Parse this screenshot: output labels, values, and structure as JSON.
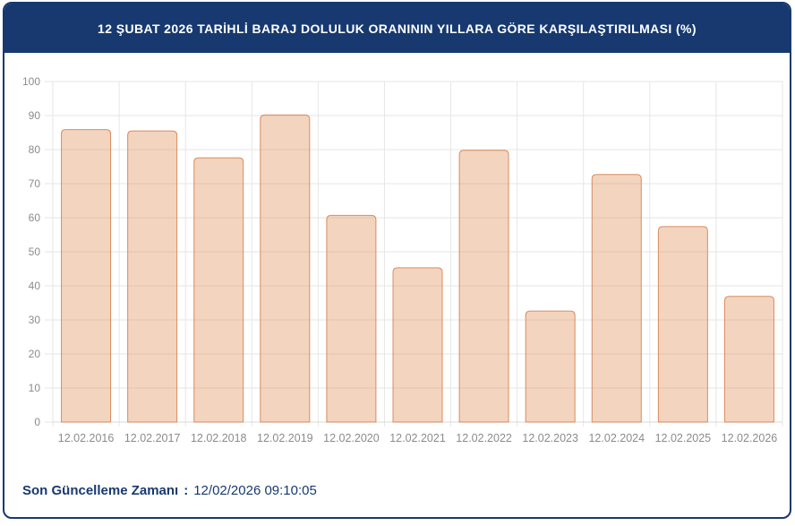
{
  "header": {
    "title": "12 ŞUBAT 2026 TARİHLİ BARAJ DOLULUK ORANININ YILLARA GÖRE KARŞILAŞTIRILMASI (%)"
  },
  "chart_data": {
    "type": "bar",
    "title": "12 ŞUBAT 2026 TARİHLİ BARAJ DOLULUK ORANININ YILLARA GÖRE KARŞILAŞTIRILMASI (%)",
    "categories": [
      "12.02.2016",
      "12.02.2017",
      "12.02.2018",
      "12.02.2019",
      "12.02.2020",
      "12.02.2021",
      "12.02.2022",
      "12.02.2023",
      "12.02.2024",
      "12.02.2025",
      "12.02.2026"
    ],
    "values": [
      85.9,
      85.5,
      77.6,
      90.2,
      60.7,
      45.3,
      79.8,
      32.6,
      72.7,
      57.4,
      36.9
    ],
    "xlabel": "",
    "ylabel": "",
    "ylim": [
      0,
      100
    ],
    "ytick_step": 10,
    "grid": true,
    "legend": false,
    "colors": {
      "bar_fill": "rgba(225,148,96,0.40)",
      "bar_border": "rgba(213,125,72,0.85)",
      "gridline": "#e6e6e6",
      "axis_line": "#d9d9d9",
      "tick_label": "#8b8b8b"
    }
  },
  "footer": {
    "label": "Son Güncelleme Zamanı",
    "separator": ":",
    "value": "12/02/2026 09:10:05"
  },
  "colors": {
    "accent_navy": "#17396f",
    "card_background": "#ffffff"
  }
}
